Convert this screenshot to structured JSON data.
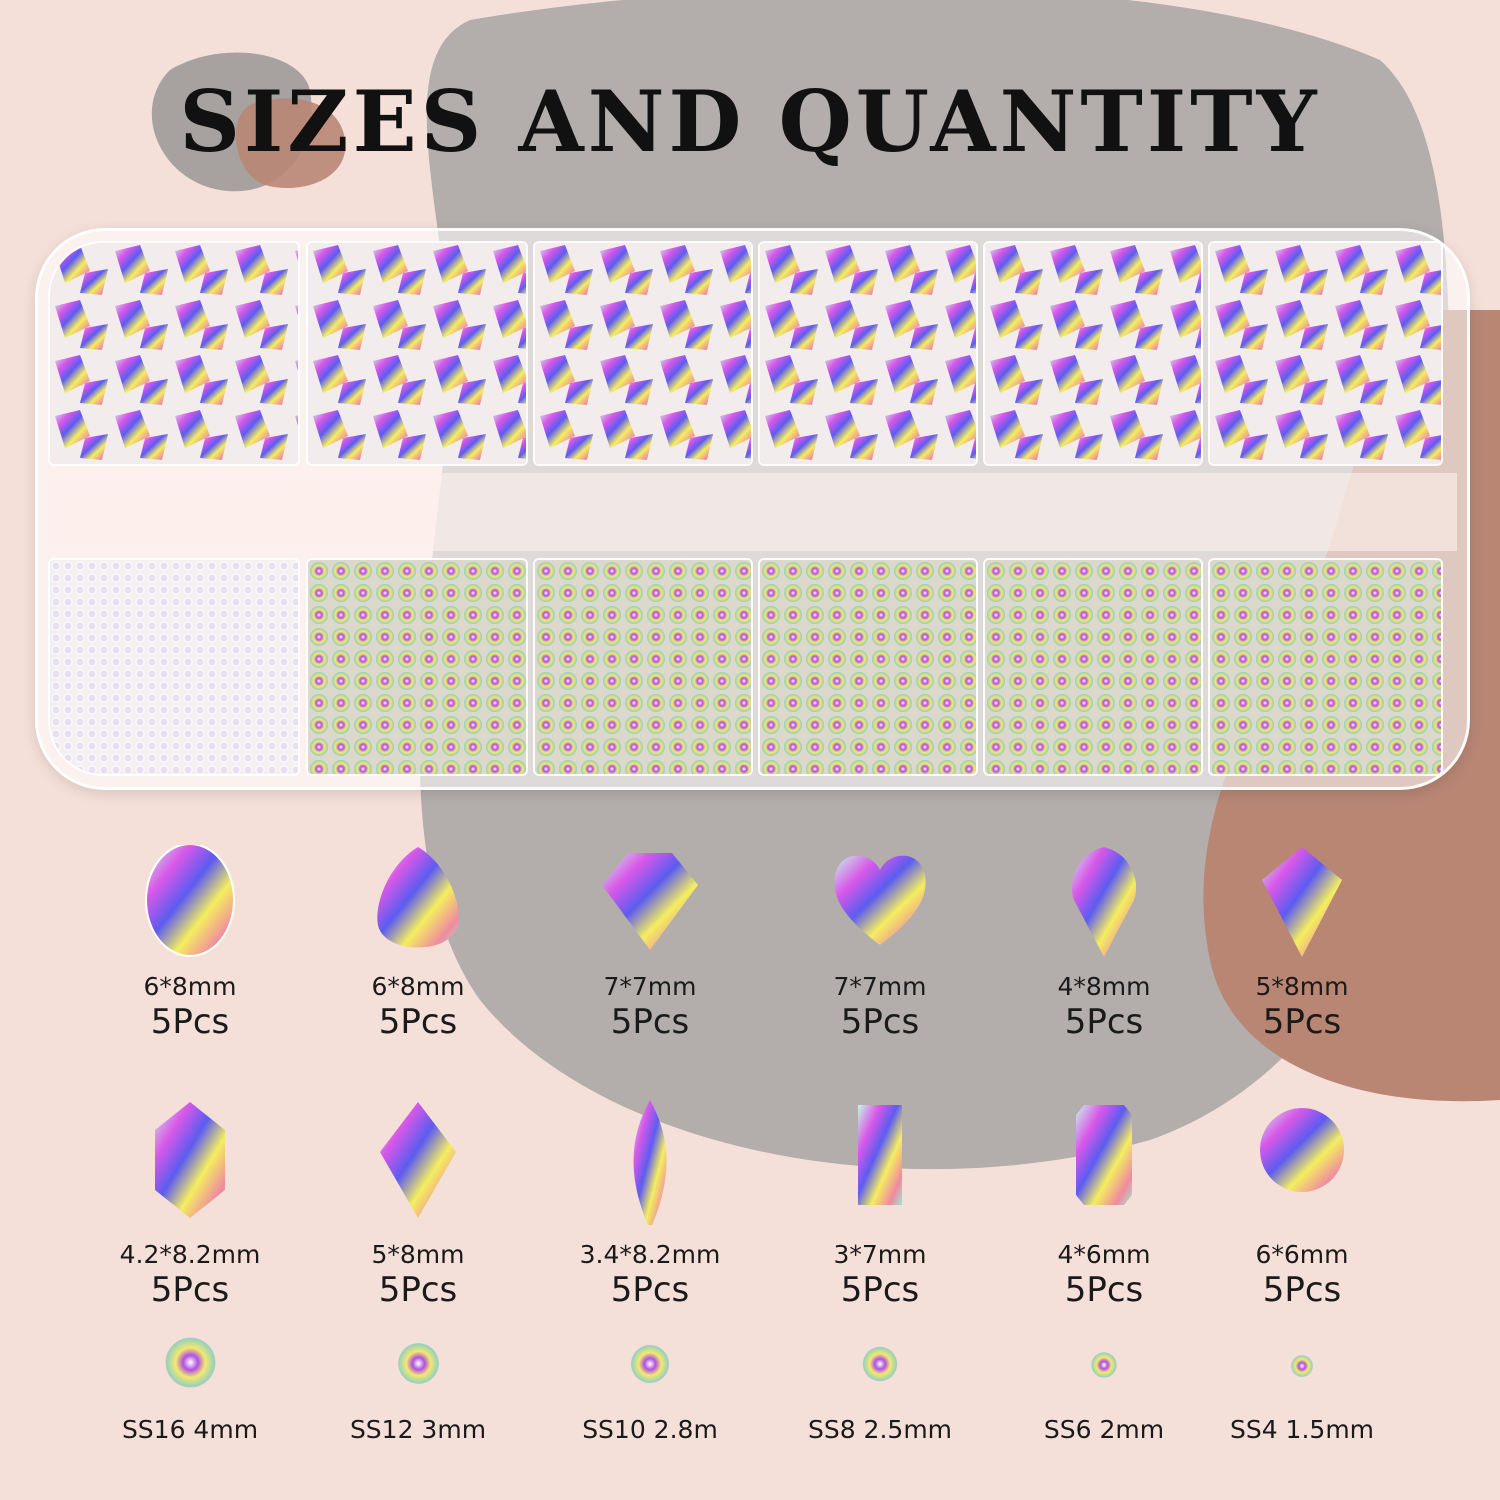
{
  "title": "SIZES AND QUANTITY",
  "colors": {
    "background": "#f5e0d9",
    "gray_shape": "#b3aeac",
    "brown_shape": "#b98674"
  },
  "shapes_row1": [
    {
      "icon": "oval-gem-icon",
      "size": "6*8mm",
      "qty": "5Pcs"
    },
    {
      "icon": "teardrop-gem-icon",
      "size": "6*8mm",
      "qty": "5Pcs"
    },
    {
      "icon": "kite-diamond-gem-icon",
      "size": "7*7mm",
      "qty": "5Pcs"
    },
    {
      "icon": "heart-gem-icon",
      "size": "7*7mm",
      "qty": "5Pcs"
    },
    {
      "icon": "inverted-drop-gem-icon",
      "size": "4*8mm",
      "qty": "5Pcs"
    },
    {
      "icon": "kite-gem-icon",
      "size": "5*8mm",
      "qty": "5Pcs"
    }
  ],
  "shapes_row2": [
    {
      "icon": "hexagon-gem-icon",
      "size": "4.2*8.2mm",
      "qty": "5Pcs"
    },
    {
      "icon": "rhombus-gem-icon",
      "size": "5*8mm",
      "qty": "5Pcs"
    },
    {
      "icon": "marquise-gem-icon",
      "size": "3.4*8.2mm",
      "qty": "5Pcs"
    },
    {
      "icon": "baguette-gem-icon",
      "size": "3*7mm",
      "qty": "5Pcs"
    },
    {
      "icon": "octagon-gem-icon",
      "size": "4*6mm",
      "qty": "5Pcs"
    },
    {
      "icon": "round-gem-icon",
      "size": "6*6mm",
      "qty": "5Pcs"
    }
  ],
  "rhinestones": [
    {
      "icon": "rhinestone-icon",
      "label": "SS16 4mm"
    },
    {
      "icon": "rhinestone-icon",
      "label": "SS12 3mm"
    },
    {
      "icon": "rhinestone-icon",
      "label": "SS10 2.8m"
    },
    {
      "icon": "rhinestone-icon",
      "label": "SS8 2.5mm"
    },
    {
      "icon": "rhinestone-icon",
      "label": "SS6 2mm"
    },
    {
      "icon": "rhinestone-icon",
      "label": "SS4 1.5mm"
    }
  ]
}
